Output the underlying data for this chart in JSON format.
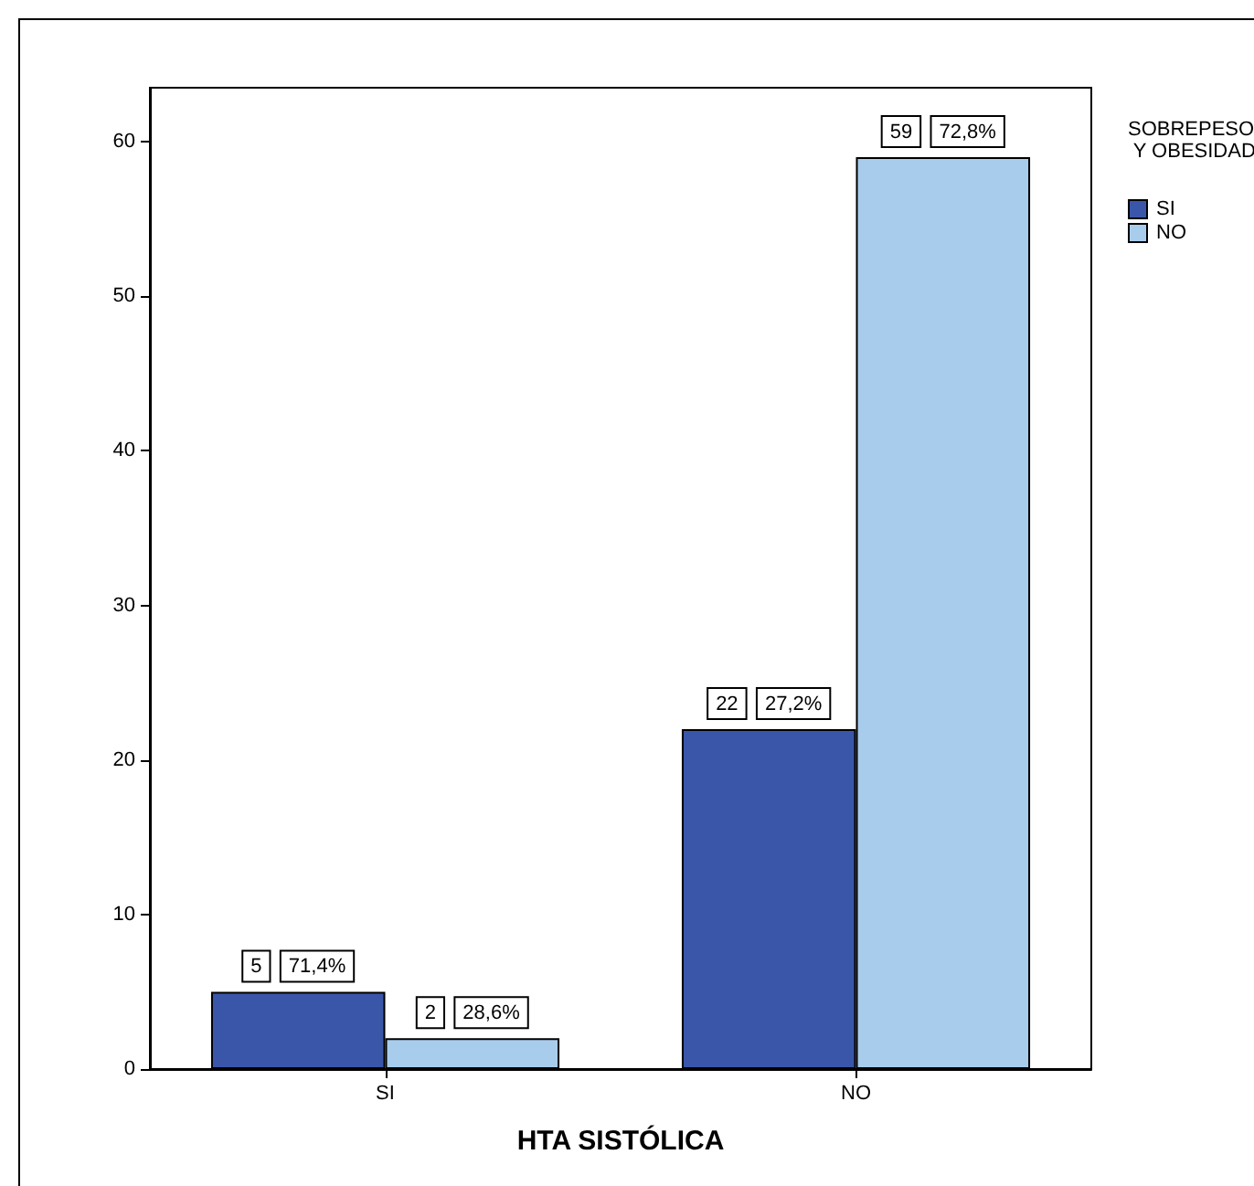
{
  "chart_data": {
    "type": "bar",
    "xlabel": "HTA SISTÓLICA",
    "legend_title": "SOBREPESO Y OBESIDAD",
    "categories": [
      "SI",
      "NO"
    ],
    "series": [
      {
        "name": "SI",
        "color": "#3a56a8",
        "values": [
          5,
          22
        ],
        "value_labels": [
          "5 71,4%",
          "22 27,2%"
        ]
      },
      {
        "name": "NO",
        "color": "#a8cdec",
        "values": [
          2,
          59
        ],
        "value_labels": [
          "2 28,6%",
          "59 72,8%"
        ]
      }
    ],
    "ylim": [
      0,
      63.5
    ],
    "yticks": [
      0,
      10,
      20,
      30,
      40,
      50,
      60
    ],
    "grid": false,
    "legend": "top right"
  }
}
